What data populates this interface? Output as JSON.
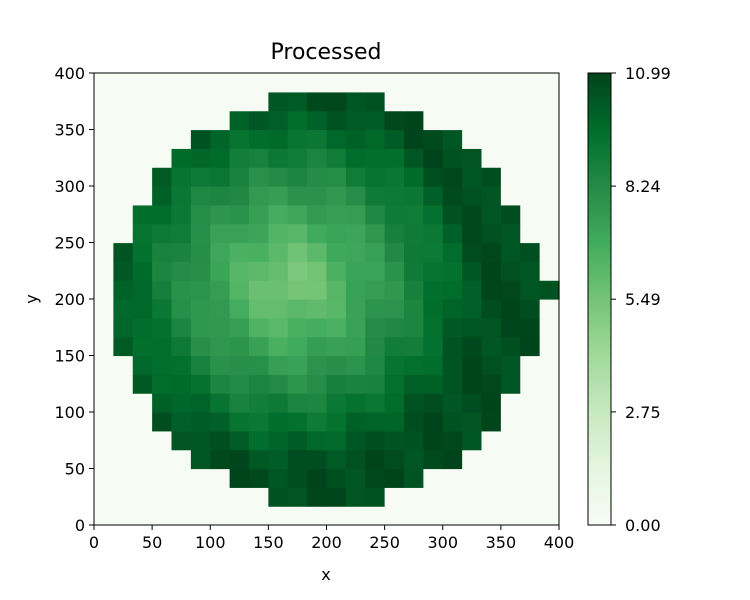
{
  "chart_data": {
    "type": "heatmap",
    "title": "Processed",
    "xlabel": "x",
    "ylabel": "y",
    "xlim": [
      0,
      400
    ],
    "ylim": [
      0,
      400
    ],
    "xticks": [
      "0",
      "50",
      "100",
      "150",
      "200",
      "250",
      "300",
      "350",
      "400"
    ],
    "yticks": [
      "0",
      "50",
      "100",
      "150",
      "200",
      "250",
      "300",
      "350",
      "400"
    ],
    "colormap": "Greens",
    "colorbar": {
      "min": 0.0,
      "max": 10.99,
      "ticks": [
        "0.00",
        "2.75",
        "5.49",
        "8.24",
        "10.99"
      ]
    },
    "grid_size": 24,
    "cell_size": 16.667,
    "center": [
      200,
      200
    ],
    "radius": 175,
    "values": []
  }
}
